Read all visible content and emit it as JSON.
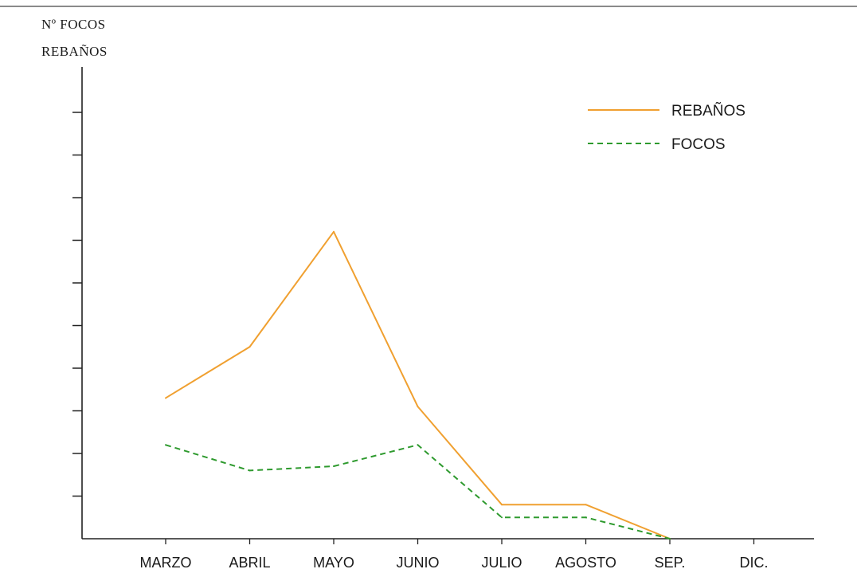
{
  "chart_data": {
    "type": "line",
    "title": "",
    "ylabel_lines": [
      "Nº FOCOS",
      "REBAÑOS"
    ],
    "xlabel": "",
    "categories": [
      "MARZO",
      "ABRIL",
      "MAYO",
      "JUNIO",
      "JULIO",
      "AGOSTO",
      "SEP.",
      "DIC."
    ],
    "ylim": [
      0,
      11
    ],
    "y_ticks_unlabeled": 10,
    "grid": false,
    "legend_position": "top-right",
    "series": [
      {
        "name": "REBAÑOS",
        "style": "solid",
        "color": "#F0A030",
        "values": [
          3.3,
          4.5,
          7.2,
          3.1,
          0.8,
          0.8,
          0.0,
          null
        ]
      },
      {
        "name": "FOCOS",
        "style": "dashed",
        "color": "#2E9A2E",
        "values": [
          2.2,
          1.6,
          1.7,
          2.2,
          0.5,
          0.5,
          0.0,
          null
        ]
      }
    ]
  }
}
